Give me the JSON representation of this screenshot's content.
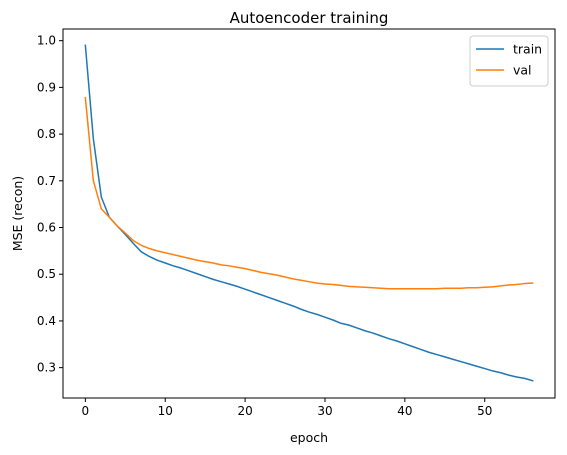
{
  "chart_data": {
    "type": "line",
    "title": "Autoencoder training",
    "xlabel": "epoch",
    "ylabel": "MSE (recon)",
    "xlim": [
      -2.8,
      58.8
    ],
    "ylim": [
      0.235,
      1.025
    ],
    "xticks": [
      0,
      10,
      20,
      30,
      40,
      50
    ],
    "yticks": [
      0.3,
      0.4,
      0.5,
      0.6,
      0.7,
      0.8,
      0.9,
      1.0
    ],
    "ytick_labels": [
      "0.3",
      "0.4",
      "0.5",
      "0.6",
      "0.7",
      "0.8",
      "0.9",
      "1.0"
    ],
    "grid": false,
    "legend_position": "top-right",
    "x": [
      0,
      1,
      2,
      3,
      4,
      5,
      6,
      7,
      8,
      9,
      10,
      11,
      12,
      13,
      14,
      15,
      16,
      17,
      18,
      19,
      20,
      21,
      22,
      23,
      24,
      25,
      26,
      27,
      28,
      29,
      30,
      31,
      32,
      33,
      34,
      35,
      36,
      37,
      38,
      39,
      40,
      41,
      42,
      43,
      44,
      45,
      46,
      47,
      48,
      49,
      50,
      51,
      52,
      53,
      54,
      55,
      56
    ],
    "series": [
      {
        "name": "train",
        "color": "#1f77b4",
        "values": [
          0.99,
          0.79,
          0.665,
          0.622,
          0.603,
          0.585,
          0.566,
          0.548,
          0.538,
          0.53,
          0.524,
          0.518,
          0.513,
          0.507,
          0.501,
          0.495,
          0.489,
          0.484,
          0.479,
          0.474,
          0.468,
          0.462,
          0.456,
          0.45,
          0.444,
          0.438,
          0.432,
          0.425,
          0.419,
          0.414,
          0.408,
          0.402,
          0.395,
          0.391,
          0.385,
          0.379,
          0.374,
          0.368,
          0.362,
          0.357,
          0.351,
          0.345,
          0.339,
          0.333,
          0.328,
          0.323,
          0.318,
          0.313,
          0.308,
          0.303,
          0.298,
          0.293,
          0.289,
          0.284,
          0.28,
          0.277,
          0.272
        ]
      },
      {
        "name": "val",
        "color": "#ff7f0e",
        "values": [
          0.878,
          0.7,
          0.64,
          0.622,
          0.603,
          0.588,
          0.572,
          0.562,
          0.555,
          0.55,
          0.546,
          0.542,
          0.538,
          0.534,
          0.53,
          0.527,
          0.524,
          0.52,
          0.518,
          0.515,
          0.512,
          0.508,
          0.504,
          0.501,
          0.498,
          0.494,
          0.49,
          0.487,
          0.484,
          0.481,
          0.479,
          0.478,
          0.476,
          0.474,
          0.473,
          0.472,
          0.471,
          0.47,
          0.469,
          0.469,
          0.469,
          0.469,
          0.469,
          0.469,
          0.469,
          0.47,
          0.47,
          0.47,
          0.471,
          0.471,
          0.472,
          0.473,
          0.475,
          0.477,
          0.478,
          0.48,
          0.481
        ]
      }
    ]
  }
}
